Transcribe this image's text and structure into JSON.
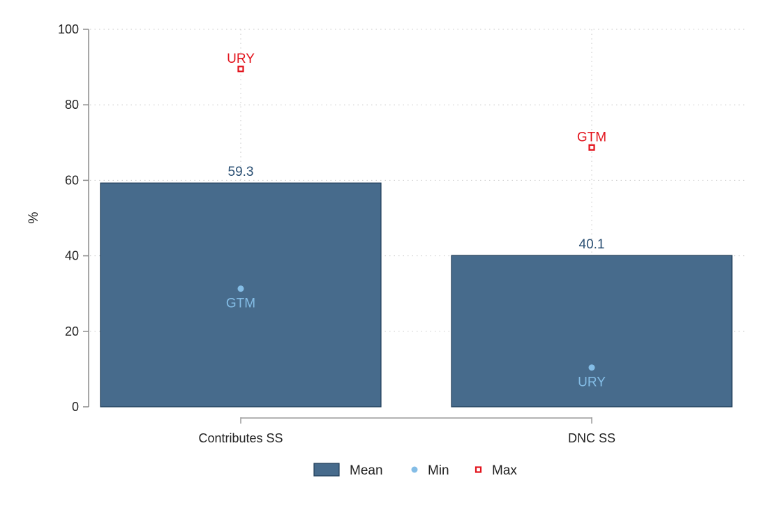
{
  "chart_data": {
    "type": "bar",
    "categories": [
      "Contributes SS",
      "DNC SS"
    ],
    "ylabel": "%",
    "ylim": [
      0,
      100
    ],
    "yticks": [
      0,
      20,
      40,
      60,
      80,
      100
    ],
    "grid": true,
    "legend_position": "bottom",
    "series": [
      {
        "name": "Mean",
        "values": [
          59.3,
          40.1
        ],
        "labels": [
          "59.3",
          "40.1"
        ],
        "color": "#476b8c",
        "marker": "bar"
      },
      {
        "name": "Min",
        "values": [
          31.3,
          10.4
        ],
        "labels": [
          "GTM",
          "URY"
        ],
        "color": "#84bde6",
        "marker": "circle"
      },
      {
        "name": "Max",
        "values": [
          89.5,
          68.7
        ],
        "labels": [
          "URY",
          "GTM"
        ],
        "color": "#e2131c",
        "marker": "square"
      }
    ]
  }
}
